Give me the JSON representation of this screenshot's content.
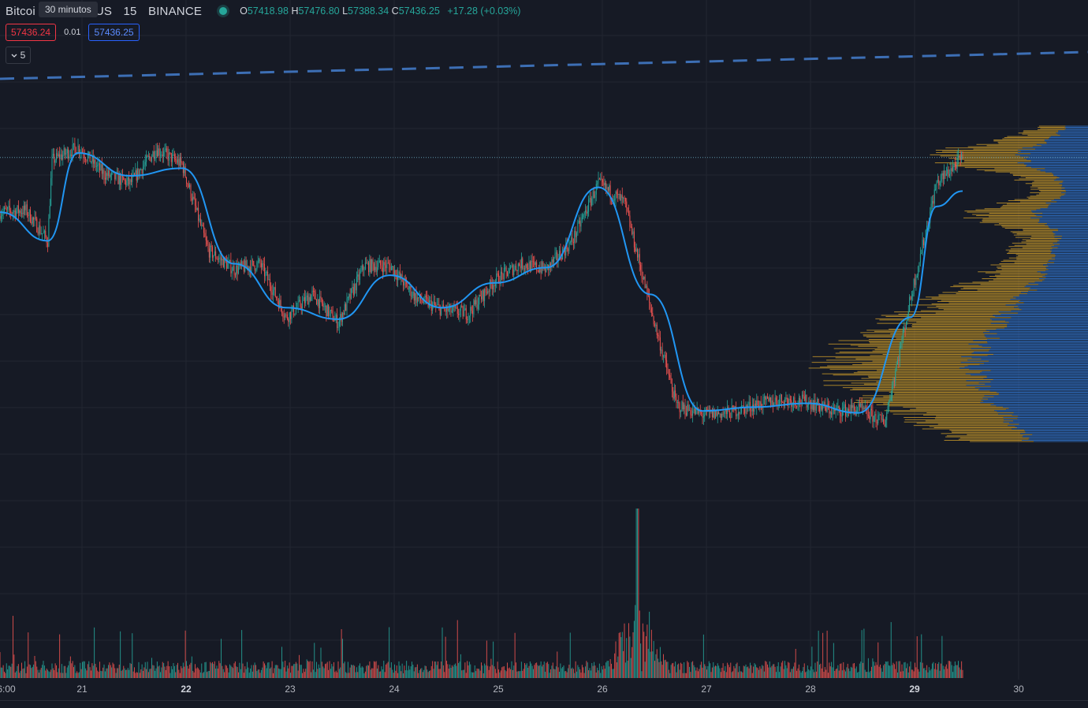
{
  "header": {
    "symbol_left": "Bitcoi",
    "symbol_right": "US",
    "interval": "15",
    "exchange": "BINANCE",
    "tooltip": "30 minutos"
  },
  "ohlc": {
    "o_label": "O",
    "o_value": "57418.98",
    "h_label": "H",
    "h_value": "57476.80",
    "l_label": "L",
    "l_value": "57388.34",
    "c_label": "C",
    "c_value": "57436.25",
    "change": "+17.28 (+0.03%)"
  },
  "quote": {
    "sell": "57436.24",
    "spread": "0.01",
    "buy": "57436.25"
  },
  "indicator_toggle": {
    "count": "5"
  },
  "colors": {
    "up": "#26a69a",
    "down": "#ef5350",
    "ma": "#2196f3",
    "vp_up": "#d4a12a",
    "vp_down": "#2f6fc4",
    "grid": "#222631",
    "dashed": "#3d6fb5"
  },
  "chart_data": {
    "type": "candlestick",
    "interval_minutes": 15,
    "x_axis_labels": [
      "6:00",
      "21",
      "22",
      "23",
      "24",
      "25",
      "26",
      "27",
      "28",
      "29",
      "30"
    ],
    "bold_x_labels": [
      "22",
      "29"
    ],
    "close_path": [
      [
        "20 06:00",
        57150
      ],
      [
        "20 12:00",
        57160
      ],
      [
        "20 17:00",
        57000
      ],
      [
        "20 18:00",
        57420
      ],
      [
        "21 00:00",
        57490
      ],
      [
        "21 06:00",
        57350
      ],
      [
        "21 12:00",
        57300
      ],
      [
        "21 18:00",
        57480
      ],
      [
        "22 00:00",
        57400
      ],
      [
        "22 06:00",
        56950
      ],
      [
        "22 12:00",
        56850
      ],
      [
        "22 18:00",
        56880
      ],
      [
        "23 00:00",
        56600
      ],
      [
        "23 06:00",
        56720
      ],
      [
        "23 12:00",
        56570
      ],
      [
        "23 18:00",
        56870
      ],
      [
        "24 00:00",
        56870
      ],
      [
        "24 06:00",
        56700
      ],
      [
        "24 12:00",
        56640
      ],
      [
        "24 18:00",
        56620
      ],
      [
        "25 00:00",
        56790
      ],
      [
        "25 06:00",
        56880
      ],
      [
        "25 12:00",
        56850
      ],
      [
        "25 18:00",
        57000
      ],
      [
        "26 00:00",
        57300
      ],
      [
        "26 06:00",
        57200
      ],
      [
        "26 12:00",
        56650
      ],
      [
        "26 18:00",
        56140
      ],
      [
        "27 00:00",
        56090
      ],
      [
        "27 06:00",
        56100
      ],
      [
        "27 12:00",
        56140
      ],
      [
        "27 18:00",
        56170
      ],
      [
        "28 00:00",
        56160
      ],
      [
        "28 06:00",
        56110
      ],
      [
        "28 12:00",
        56120
      ],
      [
        "28 18:00",
        56050
      ],
      [
        "29 00:00",
        56700
      ],
      [
        "29 06:00",
        57300
      ],
      [
        "29 12:00",
        57436
      ]
    ],
    "moving_average_path": [
      [
        "20 06:00",
        57150
      ],
      [
        "20 17:00",
        57000
      ],
      [
        "21 00:00",
        57460
      ],
      [
        "21 12:00",
        57340
      ],
      [
        "22 00:00",
        57380
      ],
      [
        "22 12:00",
        56880
      ],
      [
        "23 00:00",
        56650
      ],
      [
        "23 12:00",
        56590
      ],
      [
        "24 00:00",
        56820
      ],
      [
        "24 12:00",
        56650
      ],
      [
        "25 00:00",
        56780
      ],
      [
        "25 12:00",
        56860
      ],
      [
        "26 00:00",
        57280
      ],
      [
        "26 12:00",
        56720
      ],
      [
        "27 00:00",
        56110
      ],
      [
        "27 12:00",
        56130
      ],
      [
        "28 00:00",
        56150
      ],
      [
        "28 12:00",
        56100
      ],
      [
        "29 00:00",
        56600
      ],
      [
        "29 06:00",
        57180
      ],
      [
        "29 12:00",
        57260
      ]
    ],
    "last_price": 57436.25,
    "volume_spike": {
      "time": "26 09:00",
      "relative_volume": 1.0
    },
    "volume_profile": {
      "price_range": [
        55950,
        57600
      ],
      "point_of_control": 56350
    }
  }
}
